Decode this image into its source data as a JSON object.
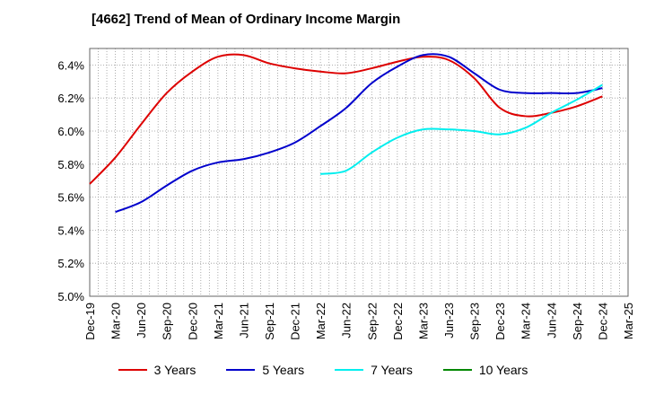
{
  "chart_data": {
    "type": "line",
    "title": "[4662]  Trend of Mean of Ordinary Income Margin",
    "xlabel": "",
    "ylabel": "",
    "x_ticks": [
      "Dec-19",
      "Mar-20",
      "Jun-20",
      "Sep-20",
      "Dec-20",
      "Mar-21",
      "Jun-21",
      "Sep-21",
      "Dec-21",
      "Mar-22",
      "Jun-22",
      "Sep-22",
      "Dec-22",
      "Mar-23",
      "Jun-23",
      "Sep-23",
      "Dec-23",
      "Mar-24",
      "Jun-24",
      "Sep-24",
      "Dec-24",
      "Mar-25"
    ],
    "y_ticks": [
      "5.0%",
      "5.2%",
      "5.4%",
      "5.6%",
      "5.8%",
      "6.0%",
      "6.2%",
      "6.4%"
    ],
    "ylim": [
      5.0,
      6.5
    ],
    "grid": true,
    "legend_position": "bottom",
    "series": [
      {
        "name": "3 Years",
        "color": "#dd0000",
        "x": [
          "Dec-19",
          "Mar-20",
          "Jun-20",
          "Sep-20",
          "Dec-20",
          "Mar-21",
          "Jun-21",
          "Sep-21",
          "Dec-21",
          "Mar-22",
          "Jun-22",
          "Sep-22",
          "Dec-22",
          "Mar-23",
          "Jun-23",
          "Sep-23",
          "Dec-23",
          "Mar-24",
          "Jun-24",
          "Sep-24",
          "Dec-24"
        ],
        "y": [
          5.68,
          5.84,
          6.04,
          6.23,
          6.36,
          6.45,
          6.46,
          6.41,
          6.38,
          6.36,
          6.35,
          6.38,
          6.42,
          6.45,
          6.43,
          6.32,
          6.14,
          6.09,
          6.11,
          6.15,
          6.21
        ]
      },
      {
        "name": "5 Years",
        "color": "#0000cc",
        "x": [
          "Mar-20",
          "Jun-20",
          "Sep-20",
          "Dec-20",
          "Mar-21",
          "Jun-21",
          "Sep-21",
          "Dec-21",
          "Mar-22",
          "Jun-22",
          "Sep-22",
          "Dec-22",
          "Mar-23",
          "Jun-23",
          "Sep-23",
          "Dec-23",
          "Mar-24",
          "Jun-24",
          "Sep-24",
          "Dec-24"
        ],
        "y": [
          5.51,
          5.57,
          5.67,
          5.76,
          5.81,
          5.83,
          5.87,
          5.93,
          6.03,
          6.14,
          6.29,
          6.39,
          6.46,
          6.45,
          6.35,
          6.25,
          6.23,
          6.23,
          6.23,
          6.26
        ]
      },
      {
        "name": "7 Years",
        "color": "#00eeee",
        "x": [
          "Mar-22",
          "Jun-22",
          "Sep-22",
          "Dec-22",
          "Mar-23",
          "Jun-23",
          "Sep-23",
          "Dec-23",
          "Mar-24",
          "Jun-24",
          "Sep-24",
          "Dec-24"
        ],
        "y": [
          5.74,
          5.76,
          5.87,
          5.96,
          6.01,
          6.01,
          6.0,
          5.98,
          6.02,
          6.11,
          6.19,
          6.28
        ]
      },
      {
        "name": "10 Years",
        "color": "#008800",
        "x": [],
        "y": []
      }
    ]
  }
}
